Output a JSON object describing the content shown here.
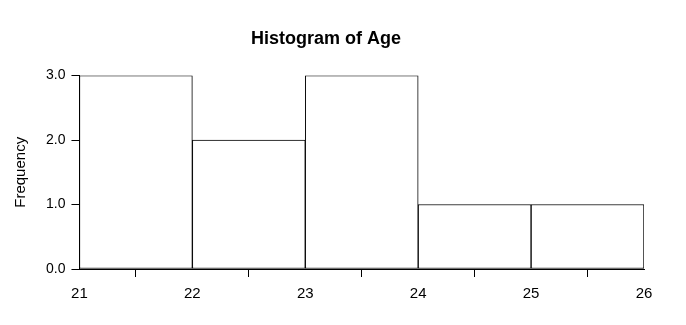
{
  "chart_data": {
    "type": "histogram",
    "title": "Histogram of Age",
    "y_label": "Frequency",
    "bins": [
      21,
      22,
      23,
      24,
      25,
      26
    ],
    "values": [
      3,
      2,
      3,
      1,
      1
    ],
    "color": "#ffffff",
    "xlim": [
      21,
      26
    ],
    "xticks": [
      21,
      22,
      23,
      24,
      25,
      26
    ],
    "ylim": [
      0,
      3
    ],
    "yticks": [
      {
        "value": 0,
        "label": "0.0"
      },
      {
        "value": 1,
        "label": "1.0"
      },
      {
        "value": 2,
        "label": "2.0"
      },
      {
        "value": 3,
        "label": "3.0"
      }
    ],
    "grid": false
  }
}
